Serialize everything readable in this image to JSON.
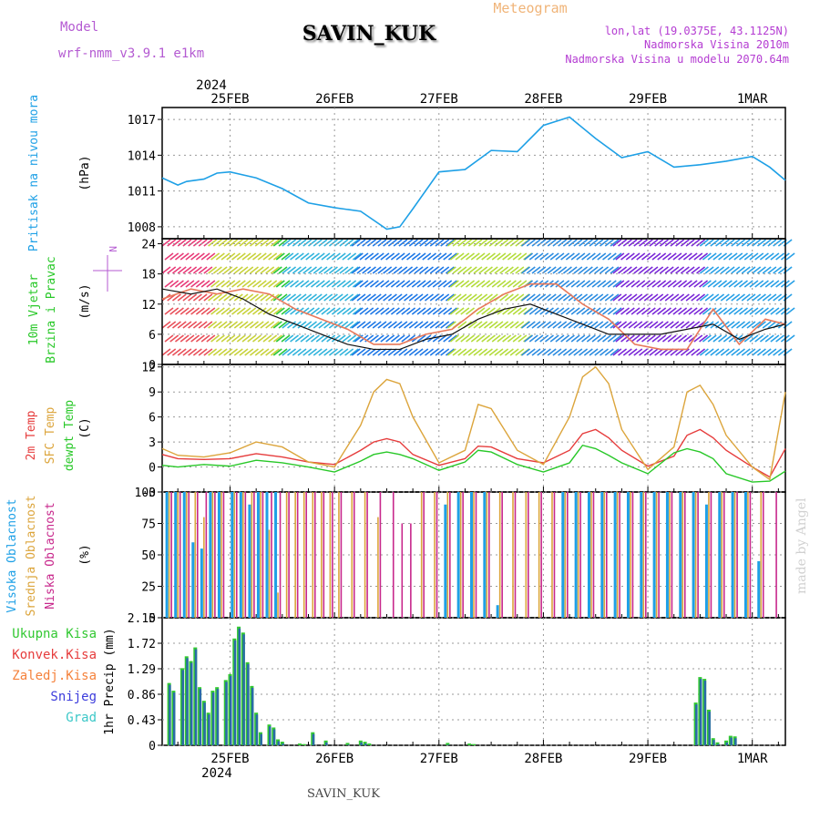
{
  "header": {
    "model_label": "Model",
    "model_name": "wrf-nmm_v3.9.1 e1km",
    "station": "SAVIN_KUK",
    "meteogram_label": "Meteogram",
    "coords": "lon,lat (19.0375E, 43.1125N)",
    "elevation": "Nadmorska Visina 2010m",
    "model_elevation": "Nadmorska Visina u modelu 2070.64m",
    "footer_station": "SAVIN_KUK",
    "watermark": "made by Angel"
  },
  "x_axis": {
    "year": "2024",
    "days": [
      "25FEB",
      "26FEB",
      "27FEB",
      "28FEB",
      "29FEB",
      "1MAR"
    ],
    "range_hours": [
      -15.6,
      127.6
    ]
  },
  "colors": {
    "pressure": "#1ea0e6",
    "temp2m": "#e63c3c",
    "sfc_temp": "#dca53c",
    "dewpt": "#28c828",
    "high_cloud": "#1ea0e6",
    "mid_cloud": "#dca53c",
    "low_cloud": "#c8288c",
    "total_precip": "#32c832",
    "convective": "#e63c3c",
    "frozen": "#f5823c",
    "snow": "#3c3cdc",
    "hail": "#3cc8c8",
    "model_label": "#b45ad2",
    "meteogram_label": "#f0b478",
    "info_label": "#b43cd2"
  },
  "chart_data": [
    {
      "type": "line",
      "id": "pressure",
      "ylabel_lines": [
        "Pritisak na nivou mora"
      ],
      "unit": "(hPa)",
      "yticks": [
        1008,
        1011,
        1014,
        1017
      ],
      "ylim": [
        1007,
        1018
      ],
      "x": [
        -15.6,
        -12,
        -10,
        -6,
        -3,
        0,
        6,
        12,
        18,
        24,
        30,
        36,
        39,
        42,
        48,
        54,
        60,
        66,
        72,
        78,
        84,
        90,
        96,
        102,
        108,
        114,
        120,
        124,
        127.6
      ],
      "series": [
        {
          "values": [
            1012.1,
            1011.5,
            1011.8,
            1012.0,
            1012.5,
            1012.6,
            1012.1,
            1011.2,
            1010.0,
            1009.6,
            1009.3,
            1007.8,
            1008.0,
            1009.5,
            1012.6,
            1012.8,
            1014.4,
            1014.3,
            1016.5,
            1017.2,
            1015.4,
            1013.8,
            1014.3,
            1013.0,
            1013.2,
            1013.5,
            1013.9,
            1013.0,
            1011.9
          ]
        }
      ]
    },
    {
      "type": "line",
      "id": "wind",
      "ylabel_lines": [
        "10m Vjetar",
        "Brzina i Pravac"
      ],
      "unit": "(m/s)",
      "compass": "N",
      "yticks": [
        0,
        6,
        12,
        18,
        24
      ],
      "ylim": [
        0,
        25
      ],
      "x": [
        -15.6,
        -9,
        -3,
        3,
        9,
        15,
        21,
        27,
        33,
        39,
        45,
        51,
        57,
        63,
        69,
        75,
        81,
        87,
        93,
        99,
        105,
        111,
        117,
        123,
        127.6
      ],
      "series": [
        {
          "values": [
            13,
            15,
            14,
            15,
            14,
            11,
            9,
            7,
            4,
            4,
            6,
            7,
            11,
            14,
            16,
            16,
            12,
            9,
            4,
            3,
            3,
            11,
            4,
            9,
            8
          ]
        },
        {
          "values": [
            15,
            14,
            15,
            13,
            10,
            8,
            6,
            4,
            3,
            3,
            5,
            6,
            9,
            11,
            12,
            10,
            8,
            6,
            6,
            6,
            7,
            8,
            5,
            7,
            8
          ]
        }
      ]
    },
    {
      "type": "line",
      "id": "temperature",
      "ylabel_lines": [
        "2m Temp",
        "SFC Temp",
        "dewpt Temp"
      ],
      "unit": "(C)",
      "yticks": [
        -3,
        0,
        3,
        6,
        9,
        12
      ],
      "ylim": [
        -3,
        12.3
      ],
      "x": [
        -15.6,
        -12,
        -6,
        0,
        6,
        12,
        18,
        24,
        30,
        33,
        36,
        39,
        42,
        48,
        54,
        57,
        60,
        66,
        72,
        78,
        81,
        84,
        87,
        90,
        96,
        102,
        105,
        108,
        111,
        114,
        120,
        124,
        127.6
      ],
      "series": [
        {
          "values": [
            1.5,
            1.0,
            0.9,
            1.0,
            1.6,
            1.2,
            0.6,
            0.3,
            2.0,
            3.0,
            3.4,
            3.0,
            1.5,
            0.2,
            1.0,
            2.5,
            2.4,
            1.0,
            0.5,
            2.0,
            4.0,
            4.5,
            3.5,
            2.0,
            0.1,
            1.3,
            3.8,
            4.5,
            3.5,
            2.0,
            0.0,
            -1.2,
            2.2
          ]
        },
        {
          "values": [
            2.2,
            1.4,
            1.2,
            1.7,
            3.0,
            2.4,
            0.6,
            0.0,
            5.0,
            9.0,
            10.5,
            10.0,
            6.0,
            0.5,
            2.0,
            7.5,
            7.0,
            2.0,
            0.3,
            6.0,
            10.8,
            12.0,
            10.0,
            4.5,
            -0.3,
            2.4,
            9.0,
            9.8,
            7.5,
            3.8,
            0.0,
            -1.5,
            9.0
          ]
        },
        {
          "values": [
            0.2,
            0.0,
            0.3,
            0.1,
            0.8,
            0.5,
            0.0,
            -0.6,
            0.7,
            1.5,
            1.8,
            1.5,
            1.0,
            -0.4,
            0.6,
            2.0,
            1.8,
            0.3,
            -0.6,
            0.5,
            2.6,
            2.2,
            1.4,
            0.5,
            -0.8,
            1.7,
            2.2,
            1.8,
            1.0,
            -0.8,
            -1.8,
            -1.7,
            -0.5
          ]
        }
      ]
    },
    {
      "type": "bar",
      "id": "clouds",
      "ylabel_lines": [
        "Visoka Oblacnost",
        "Srednja Oblacnost",
        "Niska Oblacnost"
      ],
      "unit": "(%)",
      "yticks": [
        0,
        25,
        50,
        75,
        100
      ],
      "ylim": [
        0,
        100
      ],
      "x": [
        -14,
        -12,
        -10,
        -8,
        -6,
        -4,
        -2,
        1,
        3,
        5,
        7,
        9,
        11,
        13,
        15,
        17,
        19,
        21,
        23,
        25,
        28,
        31,
        34,
        37,
        39,
        41,
        44,
        47,
        50,
        53,
        56,
        59,
        62,
        65,
        68,
        71,
        74,
        77,
        80,
        83,
        86,
        89,
        92,
        95,
        98,
        101,
        104,
        107,
        110,
        113,
        116,
        119,
        122,
        125
      ],
      "series": [
        {
          "values": [
            100,
            100,
            100,
            60,
            55,
            100,
            100,
            100,
            100,
            90,
            100,
            100,
            100,
            0,
            0,
            0,
            0,
            0,
            0,
            0,
            0,
            0,
            0,
            0,
            0,
            0,
            0,
            0,
            90,
            100,
            100,
            100,
            10,
            0,
            0,
            0,
            0,
            100,
            100,
            100,
            100,
            100,
            100,
            100,
            100,
            100,
            100,
            100,
            90,
            100,
            100,
            100,
            45,
            0
          ]
        },
        {
          "values": [
            100,
            100,
            100,
            100,
            80,
            100,
            100,
            100,
            100,
            100,
            100,
            70,
            20,
            100,
            100,
            100,
            100,
            100,
            100,
            100,
            100,
            100,
            80,
            0,
            0,
            0,
            100,
            100,
            100,
            100,
            100,
            100,
            100,
            100,
            100,
            100,
            100,
            100,
            100,
            100,
            100,
            100,
            100,
            100,
            100,
            100,
            100,
            100,
            100,
            100,
            100,
            100,
            100,
            0
          ]
        },
        {
          "values": [
            100,
            100,
            100,
            100,
            100,
            100,
            100,
            100,
            100,
            100,
            100,
            100,
            100,
            100,
            100,
            100,
            100,
            100,
            100,
            100,
            100,
            100,
            100,
            100,
            75,
            75,
            100,
            100,
            100,
            100,
            100,
            100,
            100,
            100,
            100,
            100,
            100,
            100,
            100,
            100,
            100,
            100,
            100,
            100,
            100,
            100,
            100,
            100,
            100,
            100,
            100,
            100,
            100,
            100
          ]
        }
      ]
    },
    {
      "type": "bar",
      "id": "precip",
      "ylabel_lines": [
        "Ukupna Kisa",
        "Konvek.Kisa",
        "Zaledj.Kisa",
        "Snijeg",
        "Grad"
      ],
      "unit": "1hr Precip (mm)",
      "yticks": [
        0,
        0.43,
        0.86,
        1.29,
        1.72,
        2.15
      ],
      "ylim": [
        0,
        2.15
      ],
      "x": [
        -14,
        -13,
        -11,
        -10,
        -9,
        -8,
        -7,
        -6,
        -5,
        -4,
        -3,
        -1,
        0,
        1,
        2,
        3,
        4,
        5,
        6,
        7,
        9,
        10,
        11,
        12,
        16,
        17,
        19,
        22,
        27,
        30,
        31,
        32,
        50,
        55,
        56,
        107,
        108,
        109,
        110,
        111,
        112,
        114,
        115,
        116
      ],
      "series": [
        {
          "values": [
            1.05,
            0.92,
            1.3,
            1.5,
            1.42,
            1.65,
            0.98,
            0.75,
            0.55,
            0.92,
            0.98,
            1.1,
            1.2,
            1.8,
            2.0,
            1.9,
            1.4,
            1.0,
            0.55,
            0.22,
            0.35,
            0.3,
            0.1,
            0.06,
            0.03,
            0.02,
            0.22,
            0.08,
            0.04,
            0.08,
            0.06,
            0.03,
            0.04,
            0.03,
            0.02,
            0.72,
            1.15,
            1.12,
            0.6,
            0.12,
            0.05,
            0.08,
            0.16,
            0.15
          ]
        }
      ]
    }
  ]
}
